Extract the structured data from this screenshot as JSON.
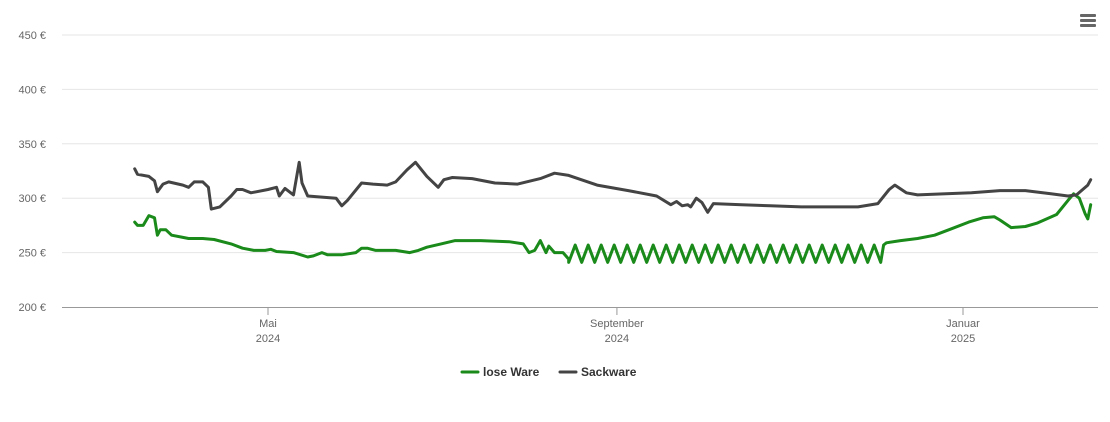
{
  "ui": {
    "menu_icon": "hamburger-menu-icon"
  },
  "chart_data": {
    "type": "line",
    "yaxis": {
      "ticks": [
        "200 €",
        "250 €",
        "300 €",
        "350 €",
        "400 €",
        "450 €"
      ],
      "values": [
        200,
        250,
        300,
        350,
        400,
        450
      ],
      "ylim": [
        200,
        450
      ],
      "grid": true
    },
    "xaxis": {
      "range": [
        "2024-03-15",
        "2025-02-15"
      ],
      "ticks": [
        {
          "date": "2024-05-01",
          "month": "Mai",
          "year": "2024"
        },
        {
          "date": "2024-09-01",
          "month": "September",
          "year": "2024"
        },
        {
          "date": "2025-01-01",
          "month": "Januar",
          "year": "2025"
        }
      ]
    },
    "legend": "bottom-center",
    "series": [
      {
        "name": "lose Ware",
        "color": "#1a8a1a",
        "points": [
          [
            "2024-03-15",
            278
          ],
          [
            "2024-03-16",
            275
          ],
          [
            "2024-03-18",
            275
          ],
          [
            "2024-03-20",
            284
          ],
          [
            "2024-03-22",
            282
          ],
          [
            "2024-03-23",
            266
          ],
          [
            "2024-03-24",
            271
          ],
          [
            "2024-03-26",
            271
          ],
          [
            "2024-03-28",
            266
          ],
          [
            "2024-04-01",
            264
          ],
          [
            "2024-04-03",
            263
          ],
          [
            "2024-04-08",
            263
          ],
          [
            "2024-04-12",
            262
          ],
          [
            "2024-04-18",
            258
          ],
          [
            "2024-04-22",
            254
          ],
          [
            "2024-04-26",
            252
          ],
          [
            "2024-04-30",
            252
          ],
          [
            "2024-05-02",
            253
          ],
          [
            "2024-05-04",
            251
          ],
          [
            "2024-05-10",
            250
          ],
          [
            "2024-05-15",
            246
          ],
          [
            "2024-05-17",
            247
          ],
          [
            "2024-05-20",
            250
          ],
          [
            "2024-05-22",
            248
          ],
          [
            "2024-05-27",
            248
          ],
          [
            "2024-06-01",
            250
          ],
          [
            "2024-06-03",
            254
          ],
          [
            "2024-06-05",
            254
          ],
          [
            "2024-06-08",
            252
          ],
          [
            "2024-06-15",
            252
          ],
          [
            "2024-06-20",
            250
          ],
          [
            "2024-06-23",
            252
          ],
          [
            "2024-06-26",
            255
          ],
          [
            "2024-07-01",
            258
          ],
          [
            "2024-07-06",
            261
          ],
          [
            "2024-07-15",
            261
          ],
          [
            "2024-07-25",
            260
          ],
          [
            "2024-07-30",
            258
          ],
          [
            "2024-08-01",
            250
          ],
          [
            "2024-08-03",
            252
          ],
          [
            "2024-08-05",
            261
          ],
          [
            "2024-08-07",
            250
          ],
          [
            "2024-08-08",
            256
          ],
          [
            "2024-08-10",
            250
          ],
          [
            "2024-08-13",
            250
          ],
          [
            "2024-08-15",
            244
          ]
        ],
        "oscillation": {
          "from": "2024-08-15",
          "to": "2024-12-03",
          "high": 257,
          "low": 241,
          "cycles": 24
        },
        "points_after": [
          [
            "2024-12-04",
            257
          ],
          [
            "2024-12-05",
            259
          ],
          [
            "2024-12-10",
            261
          ],
          [
            "2024-12-16",
            263
          ],
          [
            "2024-12-22",
            266
          ],
          [
            "2024-12-28",
            272
          ],
          [
            "2025-01-03",
            278
          ],
          [
            "2025-01-08",
            282
          ],
          [
            "2025-01-12",
            283
          ],
          [
            "2025-01-14",
            280
          ],
          [
            "2025-01-18",
            273
          ],
          [
            "2025-01-23",
            274
          ],
          [
            "2025-01-27",
            277
          ],
          [
            "2025-02-03",
            285
          ],
          [
            "2025-02-07",
            298
          ],
          [
            "2025-02-09",
            304
          ],
          [
            "2025-02-11",
            300
          ],
          [
            "2025-02-13",
            286
          ],
          [
            "2025-02-14",
            281
          ],
          [
            "2025-02-15",
            294
          ]
        ]
      },
      {
        "name": "Sackware",
        "color": "#444444",
        "points": [
          [
            "2024-03-15",
            327
          ],
          [
            "2024-03-16",
            322
          ],
          [
            "2024-03-20",
            320
          ],
          [
            "2024-03-22",
            316
          ],
          [
            "2024-03-23",
            306
          ],
          [
            "2024-03-25",
            313
          ],
          [
            "2024-03-27",
            315
          ],
          [
            "2024-04-01",
            312
          ],
          [
            "2024-04-03",
            310
          ],
          [
            "2024-04-05",
            315
          ],
          [
            "2024-04-08",
            315
          ],
          [
            "2024-04-10",
            310
          ],
          [
            "2024-04-11",
            290
          ],
          [
            "2024-04-14",
            292
          ],
          [
            "2024-04-18",
            302
          ],
          [
            "2024-04-20",
            308
          ],
          [
            "2024-04-22",
            308
          ],
          [
            "2024-04-25",
            305
          ],
          [
            "2024-05-01",
            308
          ],
          [
            "2024-05-04",
            310
          ],
          [
            "2024-05-05",
            302
          ],
          [
            "2024-05-07",
            309
          ],
          [
            "2024-05-10",
            303
          ],
          [
            "2024-05-12",
            333
          ],
          [
            "2024-05-13",
            314
          ],
          [
            "2024-05-15",
            302
          ],
          [
            "2024-05-20",
            301
          ],
          [
            "2024-05-25",
            300
          ],
          [
            "2024-05-27",
            293
          ],
          [
            "2024-05-29",
            298
          ],
          [
            "2024-06-03",
            314
          ],
          [
            "2024-06-07",
            313
          ],
          [
            "2024-06-12",
            312
          ],
          [
            "2024-06-15",
            315
          ],
          [
            "2024-06-19",
            326
          ],
          [
            "2024-06-22",
            333
          ],
          [
            "2024-06-26",
            320
          ],
          [
            "2024-06-30",
            310
          ],
          [
            "2024-07-02",
            317
          ],
          [
            "2024-07-05",
            319
          ],
          [
            "2024-07-12",
            318
          ],
          [
            "2024-07-20",
            314
          ],
          [
            "2024-07-28",
            313
          ],
          [
            "2024-08-05",
            318
          ],
          [
            "2024-08-10",
            323
          ],
          [
            "2024-08-15",
            321
          ],
          [
            "2024-08-25",
            312
          ],
          [
            "2024-09-05",
            307
          ],
          [
            "2024-09-15",
            302
          ],
          [
            "2024-09-20",
            294
          ],
          [
            "2024-09-22",
            297
          ],
          [
            "2024-09-24",
            293
          ],
          [
            "2024-09-26",
            294
          ],
          [
            "2024-09-27",
            292
          ],
          [
            "2024-09-29",
            300
          ],
          [
            "2024-10-01",
            296
          ],
          [
            "2024-10-03",
            287
          ],
          [
            "2024-10-05",
            295
          ],
          [
            "2024-10-15",
            294
          ],
          [
            "2024-10-25",
            293
          ],
          [
            "2024-11-05",
            292
          ],
          [
            "2024-11-15",
            292
          ],
          [
            "2024-11-25",
            292
          ],
          [
            "2024-12-02",
            295
          ],
          [
            "2024-12-06",
            308
          ],
          [
            "2024-12-08",
            312
          ],
          [
            "2024-12-12",
            305
          ],
          [
            "2024-12-16",
            303
          ],
          [
            "2024-12-26",
            304
          ],
          [
            "2025-01-04",
            305
          ],
          [
            "2025-01-14",
            307
          ],
          [
            "2025-01-23",
            307
          ],
          [
            "2025-02-01",
            304
          ],
          [
            "2025-02-07",
            302
          ],
          [
            "2025-02-10",
            303
          ],
          [
            "2025-02-14",
            312
          ],
          [
            "2025-02-15",
            317
          ]
        ]
      }
    ]
  },
  "render_axis": {
    "x_start": "2024-03-15",
    "x_end": "2024-12-19",
    "note_extension": [
      "2024-12-19",
      "2025-02-15"
    ]
  }
}
